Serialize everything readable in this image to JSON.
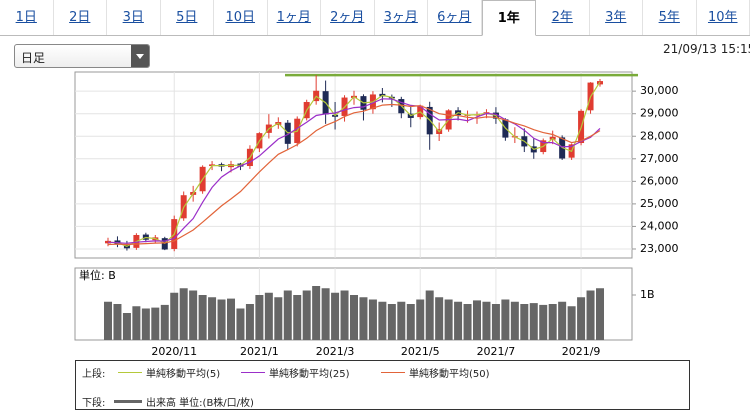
{
  "tabs": {
    "labels": [
      "1日",
      "2日",
      "3日",
      "5日",
      "10日",
      "1ヶ月",
      "2ヶ月",
      "3ヶ月",
      "6ヶ月",
      "1年",
      "2年",
      "3年",
      "5年",
      "10年"
    ],
    "selected": 9
  },
  "dropdown": "日足",
  "timestamp": "21/09/13 15:15",
  "chart_data": {
    "type": "candlestick",
    "categories": [
      null,
      null,
      null,
      null,
      null,
      null,
      null,
      "2020/11",
      null,
      null,
      null,
      null,
      null,
      null,
      null,
      null,
      "2021/1",
      null,
      null,
      null,
      null,
      null,
      null,
      null,
      "2021/3",
      null,
      null,
      null,
      null,
      null,
      null,
      null,
      null,
      "2021/5",
      null,
      null,
      null,
      null,
      null,
      null,
      null,
      "2021/7",
      null,
      null,
      null,
      null,
      null,
      null,
      null,
      null,
      "2021/9",
      null,
      null
    ],
    "open": [
      23250,
      23380,
      23180,
      23050,
      23640,
      23390,
      23480,
      23000,
      24360,
      25400,
      25560,
      26680,
      26760,
      26630,
      26790,
      26680,
      27460,
      28150,
      28500,
      28600,
      27700,
      28800,
      29560,
      30000,
      28950,
      28900,
      29700,
      29780,
      29200,
      29880,
      29750,
      29650,
      29000,
      28850,
      29300,
      28100,
      28300,
      29150,
      28930,
      28950,
      28980,
      29050,
      28750,
      27950,
      28000,
      27550,
      27300,
      27850,
      27950,
      27050,
      27700,
      29150,
      30300
    ],
    "high": [
      23500,
      23560,
      23360,
      23700,
      23720,
      23620,
      23540,
      24480,
      25550,
      25800,
      26710,
      26900,
      26830,
      26910,
      26820,
      27600,
      28180,
      28980,
      28840,
      28720,
      28880,
      29620,
      30714,
      30470,
      29520,
      29820,
      30020,
      29860,
      30000,
      30140,
      29850,
      29750,
      29360,
      29400,
      29530,
      28610,
      29200,
      29290,
      29140,
      29100,
      29200,
      29290,
      28800,
      28400,
      28350,
      27900,
      27900,
      28250,
      28040,
      27680,
      29200,
      30400,
      30540
    ],
    "low": [
      23120,
      23080,
      22930,
      22960,
      23300,
      23250,
      22950,
      22900,
      24250,
      25100,
      25450,
      26500,
      26450,
      26400,
      26500,
      26550,
      27300,
      27900,
      28330,
      27400,
      27550,
      28700,
      29400,
      28550,
      28300,
      28650,
      29400,
      28700,
      29000,
      29500,
      29300,
      28800,
      28400,
      28750,
      27400,
      27790,
      28200,
      28700,
      28600,
      28550,
      28800,
      28550,
      27800,
      27700,
      27300,
      27000,
      27200,
      27650,
      26950,
      26950,
      27600,
      29000,
      30200
    ],
    "close": [
      23360,
      23205,
      23030,
      23620,
      23410,
      23516,
      22977,
      24325,
      25385,
      25527,
      26644,
      26751,
      26652,
      26763,
      26656,
      27444,
      28139,
      28519,
      28631,
      27663,
      28779,
      29520,
      30018,
      28966,
      28864,
      29717,
      29792,
      29176,
      29854,
      29768,
      29683,
      29020,
      28812,
      29357,
      28084,
      28317,
      29149,
      28941,
      28948,
      28964,
      29066,
      28783,
      27940,
      28003,
      27548,
      27283,
      27820,
      27977,
      27013,
      27641,
      29128,
      30381,
      30447
    ],
    "up_color": "#e03c31",
    "down_color": "#1e2a55",
    "ylim": [
      22600,
      30850
    ],
    "yticks": [
      {
        "value": 23000,
        "label": "23,000"
      },
      {
        "value": 24000,
        "label": "24,000"
      },
      {
        "value": 25000,
        "label": "25,000"
      },
      {
        "value": 26000,
        "label": "26,000"
      },
      {
        "value": 27000,
        "label": "27,000"
      },
      {
        "value": 28000,
        "label": "28,000"
      },
      {
        "value": 29000,
        "label": "29,000"
      },
      {
        "value": 30000,
        "label": "30,000"
      }
    ],
    "grid": true,
    "hline": {
      "value": 30714,
      "color": "#7aab3a"
    },
    "upper_label": "上段:",
    "lower_label": "下段:",
    "moving_averages": [
      {
        "name": "単純移動平均(5)",
        "color": "#b5c93a",
        "values": [
          23300,
          23280,
          23120,
          23330,
          23510,
          23460,
          23250,
          23650,
          24850,
          25460,
          26090,
          26700,
          26700,
          26710,
          26710,
          27050,
          27790,
          28330,
          28580,
          28150,
          28220,
          29150,
          29770,
          29490,
          28920,
          29290,
          29750,
          29480,
          29520,
          29810,
          29730,
          29350,
          28920,
          29080,
          28720,
          28200,
          28730,
          29050,
          28940,
          28960,
          29020,
          28920,
          28360,
          27970,
          27780,
          27420,
          27550,
          27900,
          27500,
          27330,
          28380,
          29750,
          30410
        ]
      },
      {
        "name": "単純移動平均(25)",
        "color": "#9b2fc9",
        "values": [
          23300,
          23280,
          23250,
          23300,
          23330,
          23360,
          23350,
          23470,
          23920,
          24350,
          25070,
          25730,
          26190,
          26470,
          26690,
          26850,
          27130,
          27500,
          27880,
          28080,
          28350,
          28620,
          28920,
          28990,
          29030,
          29170,
          29270,
          29300,
          29480,
          29660,
          29650,
          29500,
          29370,
          29330,
          28990,
          28720,
          28740,
          28760,
          28690,
          28860,
          29010,
          28980,
          28740,
          28550,
          28270,
          27910,
          27720,
          27720,
          27530,
          27550,
          27770,
          27950,
          28350
        ]
      },
      {
        "name": "単純移動平均(50)",
        "color": "#e2643a",
        "values": [
          23200,
          23210,
          23200,
          23220,
          23240,
          23260,
          23270,
          23360,
          23600,
          23840,
          24190,
          24550,
          24910,
          25220,
          25550,
          25980,
          26420,
          26820,
          27200,
          27410,
          27630,
          27910,
          28250,
          28480,
          28650,
          28870,
          29040,
          29110,
          29250,
          29380,
          29410,
          29380,
          29320,
          29360,
          29190,
          29000,
          28940,
          28920,
          28840,
          28800,
          28860,
          28840,
          28720,
          28580,
          28460,
          28290,
          28160,
          28080,
          27890,
          27720,
          27800,
          28000,
          28250
        ]
      }
    ],
    "volume": {
      "name": "出来高 単位:(B株/口/枚)",
      "unit_label": "単位: B",
      "color": "#666666",
      "values": [
        0.85,
        0.8,
        0.6,
        0.75,
        0.7,
        0.72,
        0.78,
        1.05,
        1.15,
        1.1,
        1.0,
        0.95,
        0.9,
        0.92,
        0.7,
        0.8,
        1.0,
        1.05,
        0.95,
        1.1,
        1.0,
        1.1,
        1.2,
        1.15,
        1.05,
        1.1,
        1.0,
        0.95,
        0.9,
        0.85,
        0.8,
        0.85,
        0.8,
        0.9,
        1.1,
        0.95,
        0.9,
        0.85,
        0.8,
        0.88,
        0.85,
        0.8,
        0.9,
        0.85,
        0.8,
        0.82,
        0.78,
        0.8,
        0.85,
        0.75,
        0.95,
        1.1,
        1.15
      ],
      "ylim": [
        0,
        1.6
      ],
      "yticks": [
        {
          "value": 1,
          "label": "1B"
        }
      ]
    }
  }
}
